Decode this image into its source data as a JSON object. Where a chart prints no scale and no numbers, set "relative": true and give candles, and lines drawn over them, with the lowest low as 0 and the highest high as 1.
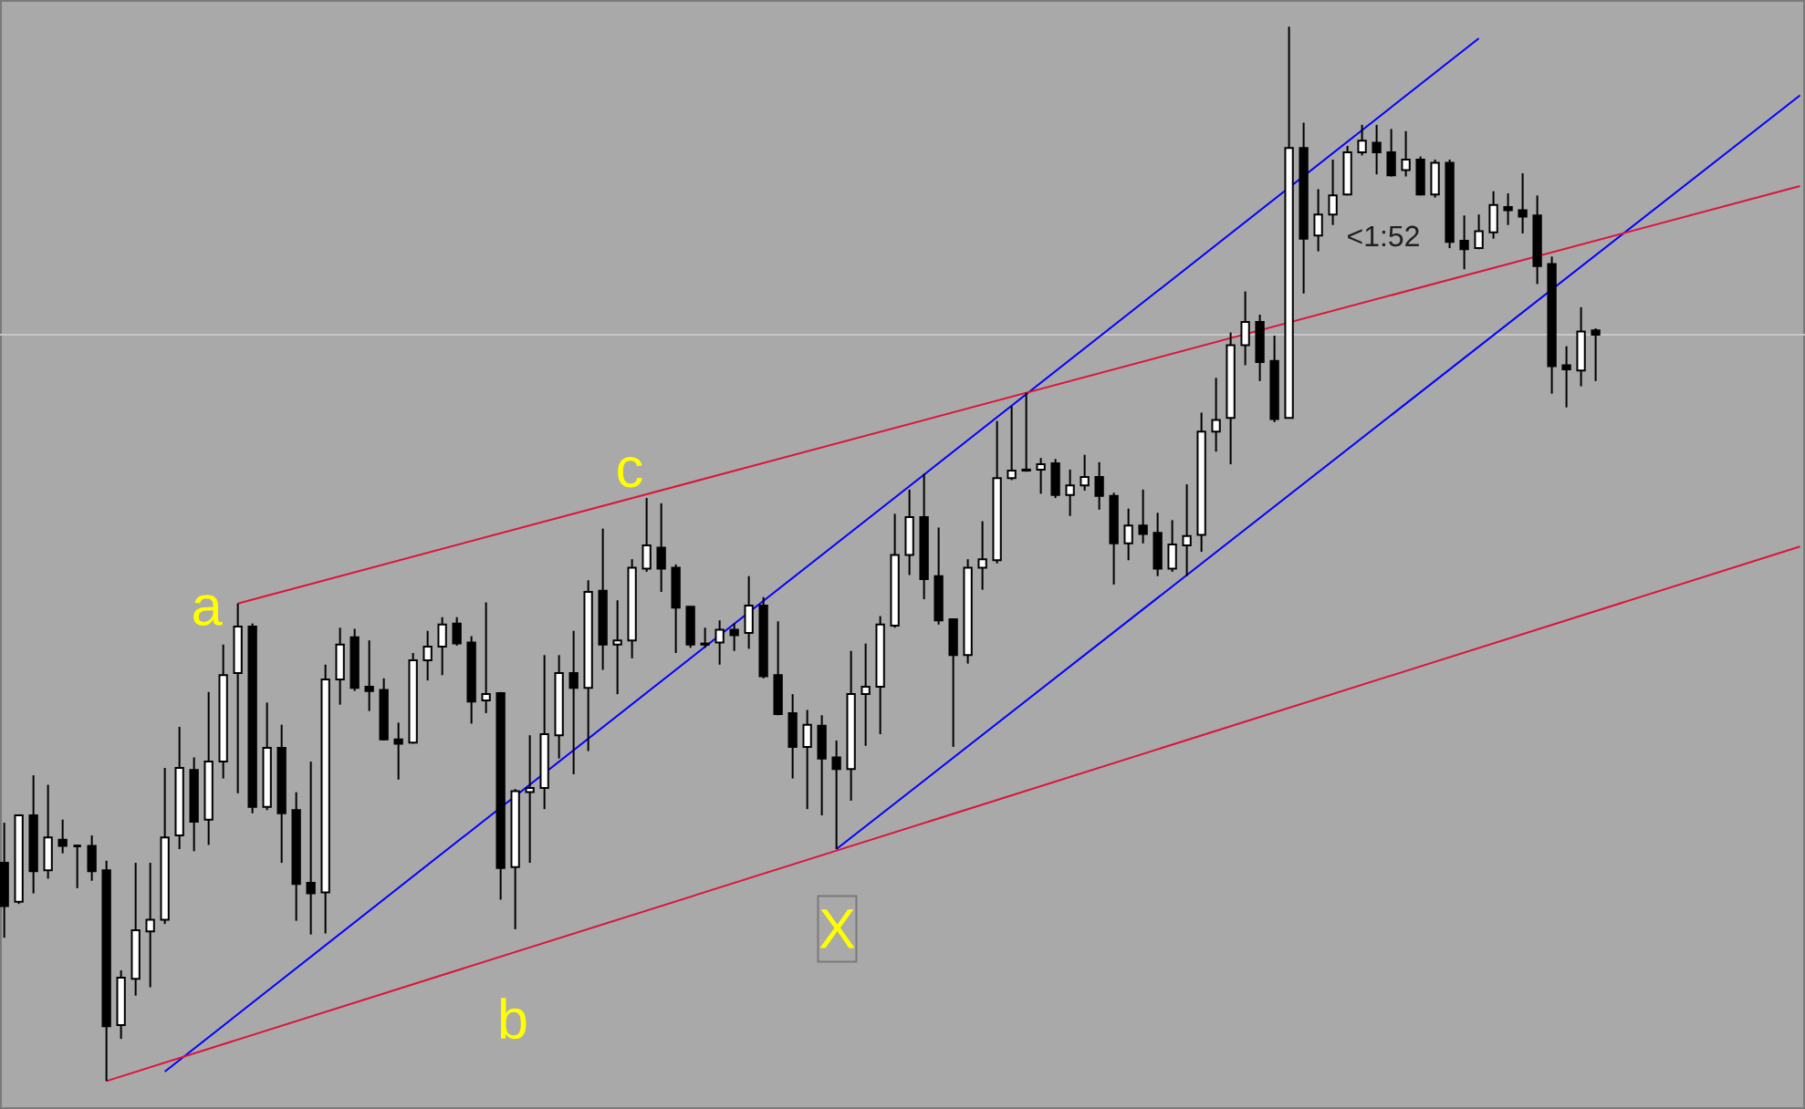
{
  "chart_data": {
    "type": "candlestick",
    "relative": true,
    "categories": [
      null,
      null,
      null,
      null,
      null,
      null,
      null,
      null,
      null,
      null,
      null,
      null,
      null,
      null,
      null,
      null,
      null,
      null,
      null,
      null,
      null,
      null,
      null,
      null,
      null,
      null,
      null,
      null,
      null,
      null,
      null,
      null,
      null,
      null,
      null,
      null,
      null,
      null,
      null,
      null,
      null,
      null,
      null,
      null,
      null,
      null,
      null,
      null,
      null,
      null,
      null,
      null,
      null,
      null,
      null,
      null,
      null,
      null,
      null,
      null,
      null,
      null,
      null,
      null,
      null,
      null,
      null,
      null,
      null,
      null,
      null,
      null,
      null,
      null,
      null,
      null,
      null,
      null,
      null,
      null,
      null,
      null,
      null,
      null,
      null,
      null,
      null,
      null,
      null,
      null,
      null,
      null,
      null,
      null,
      null,
      null,
      null,
      null,
      null,
      null,
      null,
      null,
      null,
      null,
      null,
      null,
      null,
      null,
      null,
      null,
      null,
      null,
      null,
      null,
      null,
      null,
      null,
      null,
      null,
      null,
      null,
      null,
      null,
      null
    ],
    "ohlc": [
      [
        0.207,
        0.245,
        0.136,
        0.166
      ],
      [
        0.17,
        0.253,
        0.168,
        0.252
      ],
      [
        0.252,
        0.29,
        0.178,
        0.199
      ],
      [
        0.2,
        0.281,
        0.192,
        0.231
      ],
      [
        0.229,
        0.248,
        0.216,
        0.223
      ],
      [
        0.223,
        0.224,
        0.183,
        0.223
      ],
      [
        0.223,
        0.233,
        0.19,
        0.199
      ],
      [
        0.2,
        0.209,
        0,
        0.052
      ],
      [
        0.053,
        0.105,
        0.04,
        0.098
      ],
      [
        0.097,
        0.207,
        0.081,
        0.143
      ],
      [
        0.142,
        0.207,
        0.089,
        0.153
      ],
      [
        0.153,
        0.297,
        0.149,
        0.231
      ],
      [
        0.233,
        0.336,
        0.22,
        0.297
      ],
      [
        0.295,
        0.307,
        0.218,
        0.246
      ],
      [
        0.248,
        0.369,
        0.224,
        0.303
      ],
      [
        0.303,
        0.414,
        0.287,
        0.385
      ],
      [
        0.387,
        0.453,
        0.273,
        0.431
      ],
      [
        0.431,
        0.434,
        0.254,
        0.26
      ],
      [
        0.26,
        0.359,
        0.257,
        0.316
      ],
      [
        0.316,
        0.338,
        0.207,
        0.254
      ],
      [
        0.257,
        0.274,
        0.152,
        0.187
      ],
      [
        0.188,
        0.303,
        0.139,
        0.178
      ],
      [
        0.179,
        0.395,
        0.14,
        0.381
      ],
      [
        0.381,
        0.43,
        0.357,
        0.414
      ],
      [
        0.421,
        0.429,
        0.37,
        0.373
      ],
      [
        0.374,
        0.418,
        0.351,
        0.37
      ],
      [
        0.371,
        0.382,
        0.323,
        0.324
      ],
      [
        0.324,
        0.34,
        0.286,
        0.32
      ],
      [
        0.321,
        0.406,
        0.32,
        0.399
      ],
      [
        0.399,
        0.427,
        0.38,
        0.412
      ],
      [
        0.412,
        0.44,
        0.385,
        0.433
      ],
      [
        0.434,
        0.44,
        0.413,
        0.415
      ],
      [
        0.416,
        0.422,
        0.339,
        0.36
      ],
      [
        0.361,
        0.454,
        0.349,
        0.367
      ],
      [
        0.368,
        0.369,
        0.172,
        0.202
      ],
      [
        0.203,
        0.277,
        0.144,
        0.275
      ],
      [
        0.274,
        0.328,
        0.207,
        0.278
      ],
      [
        0.278,
        0.404,
        0.258,
        0.329
      ],
      [
        0.328,
        0.404,
        0.306,
        0.387
      ],
      [
        0.387,
        0.427,
        0.291,
        0.373
      ],
      [
        0.373,
        0.475,
        0.313,
        0.464
      ],
      [
        0.465,
        0.524,
        0.39,
        0.414
      ],
      [
        0.414,
        0.456,
        0.367,
        0.418
      ],
      [
        0.418,
        0.495,
        0.401,
        0.487
      ],
      [
        0.486,
        0.553,
        0.483,
        0.508
      ],
      [
        0.506,
        0.548,
        0.464,
        0.486
      ],
      [
        0.487,
        0.49,
        0.406,
        0.449
      ],
      [
        0.45,
        0.45,
        0.411,
        0.414
      ],
      [
        0.415,
        0.43,
        0.411,
        0.414
      ],
      [
        0.416,
        0.437,
        0.395,
        0.428
      ],
      [
        0.428,
        0.434,
        0.408,
        0.423
      ],
      [
        0.425,
        0.479,
        0.41,
        0.451
      ],
      [
        0.451,
        0.459,
        0.382,
        0.384
      ],
      [
        0.385,
        0.436,
        0.347,
        0.348
      ],
      [
        0.349,
        0.367,
        0.287,
        0.317
      ],
      [
        0.317,
        0.352,
        0.258,
        0.338
      ],
      [
        0.337,
        0.347,
        0.252,
        0.306
      ],
      [
        0.307,
        0.323,
        0.22,
        0.296
      ],
      [
        0.296,
        0.408,
        0.266,
        0.367
      ],
      [
        0.367,
        0.415,
        0.318,
        0.374
      ],
      [
        0.374,
        0.441,
        0.329,
        0.433
      ],
      [
        0.432,
        0.538,
        0.43,
        0.499
      ],
      [
        0.499,
        0.561,
        0.48,
        0.535
      ],
      [
        0.535,
        0.576,
        0.457,
        0.476
      ],
      [
        0.479,
        0.525,
        0.433,
        0.437
      ],
      [
        0.438,
        0.438,
        0.317,
        0.404
      ],
      [
        0.404,
        0.495,
        0.396,
        0.487
      ],
      [
        0.487,
        0.531,
        0.466,
        0.495
      ],
      [
        0.494,
        0.626,
        0.491,
        0.572
      ],
      [
        0.572,
        0.64,
        0.57,
        0.579
      ],
      [
        0.58,
        0.653,
        0.578,
        0.579
      ],
      [
        0.58,
        0.591,
        0.557,
        0.585
      ],
      [
        0.586,
        0.59,
        0.553,
        0.556
      ],
      [
        0.556,
        0.58,
        0.536,
        0.565
      ],
      [
        0.565,
        0.594,
        0.56,
        0.573
      ],
      [
        0.573,
        0.587,
        0.542,
        0.555
      ],
      [
        0.555,
        0.558,
        0.471,
        0.51
      ],
      [
        0.51,
        0.543,
        0.494,
        0.527
      ],
      [
        0.527,
        0.561,
        0.51,
        0.519
      ],
      [
        0.52,
        0.539,
        0.479,
        0.486
      ],
      [
        0.486,
        0.532,
        0.483,
        0.509
      ],
      [
        0.508,
        0.566,
        0.479,
        0.517
      ],
      [
        0.518,
        0.634,
        0.502,
        0.616
      ],
      [
        0.616,
        0.667,
        0.597,
        0.627
      ],
      [
        0.629,
        0.71,
        0.585,
        0.698
      ],
      [
        0.698,
        0.749,
        0.679,
        0.72
      ],
      [
        0.72,
        0.727,
        0.664,
        0.682
      ],
      [
        0.683,
        0.707,
        0.625,
        0.628
      ],
      [
        0.629,
        1,
        0.629,
        0.885
      ],
      [
        0.885,
        0.909,
        0.747,
        0.799
      ],
      [
        0.802,
        0.846,
        0.787,
        0.822
      ],
      [
        0.822,
        0.874,
        0.812,
        0.84
      ],
      [
        0.841,
        0.887,
        0.84,
        0.881
      ],
      [
        0.881,
        0.907,
        0.878,
        0.892
      ],
      [
        0.89,
        0.907,
        0.86,
        0.881
      ],
      [
        0.881,
        0.903,
        0.858,
        0.859
      ],
      [
        0.864,
        0.901,
        0.858,
        0.874
      ],
      [
        0.874,
        0.877,
        0.84,
        0.841
      ],
      [
        0.841,
        0.874,
        0.838,
        0.871
      ],
      [
        0.871,
        0.874,
        0.79,
        0.796
      ],
      [
        0.797,
        0.821,
        0.77,
        0.789
      ],
      [
        0.79,
        0.822,
        0.789,
        0.806
      ],
      [
        0.805,
        0.844,
        0.799,
        0.831
      ],
      [
        0.829,
        0.842,
        0.812,
        0.826
      ],
      [
        0.826,
        0.861,
        0.804,
        0.82
      ],
      [
        0.821,
        0.84,
        0.756,
        0.773
      ],
      [
        0.775,
        0.782,
        0.652,
        0.678
      ],
      [
        0.679,
        0.697,
        0.639,
        0.675
      ],
      [
        0.674,
        0.734,
        0.659,
        0.711
      ],
      [
        0.712,
        0.714,
        0.664,
        0.708
      ],
      null,
      null,
      null,
      null,
      null,
      null,
      null,
      null,
      null,
      null,
      null,
      null,
      null,
      null
    ],
    "colors": [
      "#000000",
      "#ffffff",
      "#000000",
      "#ffffff",
      "#000000",
      "#000000",
      "#000000",
      "#000000",
      "#ffffff",
      "#ffffff",
      "#ffffff",
      "#ffffff",
      "#ffffff",
      "#000000",
      "#ffffff",
      "#ffffff",
      "#ffffff",
      "#000000",
      "#ffffff",
      "#000000",
      "#000000",
      "#000000",
      "#ffffff",
      "#ffffff",
      "#000000",
      "#000000",
      "#000000",
      "#000000",
      "#ffffff",
      "#ffffff",
      "#ffffff",
      "#000000",
      "#000000",
      "#ffffff",
      "#000000",
      "#ffffff",
      "#ffffff",
      "#ffffff",
      "#ffffff",
      "#000000",
      "#ffffff",
      "#000000",
      "#ffffff",
      "#ffffff",
      "#ffffff",
      "#000000",
      "#000000",
      "#000000",
      "#000000",
      "#ffffff",
      "#000000",
      "#ffffff",
      "#000000",
      "#000000",
      "#000000",
      "#ffffff",
      "#000000",
      "#000000",
      "#ffffff",
      "#ffffff",
      "#ffffff",
      "#ffffff",
      "#ffffff",
      "#000000",
      "#000000",
      "#000000",
      "#ffffff",
      "#ffffff",
      "#ffffff",
      "#ffffff",
      "#000000",
      "#ffffff",
      "#000000",
      "#ffffff",
      "#ffffff",
      "#000000",
      "#000000",
      "#ffffff",
      "#000000",
      "#000000",
      "#ffffff",
      "#ffffff",
      "#ffffff",
      "#ffffff",
      "#ffffff",
      "#ffffff",
      "#000000",
      "#000000",
      "#ffffff",
      "#000000",
      "#ffffff",
      "#ffffff",
      "#ffffff",
      "#ffffff",
      "#000000",
      "#000000",
      "#ffffff",
      "#000000",
      "#ffffff",
      "#000000",
      "#000000",
      "#ffffff",
      "#ffffff",
      "#000000",
      "#000000",
      "#000000",
      "#000000",
      "#000000",
      "#ffffff",
      "#000000",
      null,
      null,
      null,
      null,
      null,
      null,
      null,
      null,
      null,
      null,
      null,
      null,
      null,
      null
    ],
    "series": [
      {
        "type": "line",
        "color": "#0000ff",
        "values": [
          null,
          null,
          null,
          null,
          null,
          null,
          null,
          null,
          null,
          null,
          null,
          0.009,
          null,
          null,
          null,
          null,
          null,
          null,
          null,
          null,
          null,
          null,
          null,
          null,
          null,
          null,
          null,
          null,
          null,
          null,
          null,
          null,
          null,
          null,
          null,
          null,
          null,
          null,
          null,
          null,
          null,
          null,
          null,
          null,
          null,
          null,
          null,
          null,
          null,
          null,
          null,
          null,
          null,
          null,
          null,
          null,
          null,
          null,
          null,
          null,
          null,
          null,
          null,
          null,
          null,
          null,
          null,
          null,
          null,
          null,
          null,
          null,
          null,
          null,
          null,
          null,
          null,
          null,
          null,
          null,
          null,
          null,
          null,
          null,
          null,
          null,
          null,
          null,
          null,
          null,
          null,
          null,
          null,
          null,
          null,
          null,
          null,
          null,
          null,
          null,
          null,
          0.989,
          null,
          null,
          null,
          null,
          null,
          null,
          null,
          null,
          null,
          null,
          null,
          null,
          null,
          null,
          null,
          null,
          null,
          null,
          null,
          null,
          null,
          null
        ]
      },
      {
        "type": "line",
        "color": "#0000ff",
        "values": [
          null,
          null,
          null,
          null,
          null,
          null,
          null,
          null,
          null,
          null,
          null,
          null,
          null,
          null,
          null,
          null,
          null,
          null,
          null,
          null,
          null,
          null,
          null,
          null,
          null,
          null,
          null,
          null,
          null,
          null,
          null,
          null,
          null,
          null,
          null,
          null,
          null,
          null,
          null,
          null,
          null,
          null,
          null,
          null,
          null,
          null,
          null,
          null,
          null,
          null,
          null,
          null,
          null,
          null,
          null,
          null,
          null,
          0.22,
          null,
          null,
          null,
          null,
          null,
          null,
          null,
          null,
          null,
          null,
          null,
          null,
          null,
          null,
          null,
          null,
          null,
          null,
          null,
          null,
          null,
          null,
          null,
          null,
          null,
          null,
          null,
          null,
          null,
          null,
          null,
          null,
          null,
          null,
          null,
          null,
          null,
          null,
          null,
          null,
          null,
          null,
          null,
          null,
          null,
          null,
          null,
          null,
          null,
          null,
          null,
          null,
          null,
          null,
          null,
          null,
          null,
          null,
          null,
          null,
          null,
          null,
          null,
          null,
          null,
          0.935
        ]
      },
      {
        "type": "line",
        "color": "#dc143c",
        "values": [
          null,
          null,
          null,
          null,
          null,
          null,
          null,
          null,
          null,
          null,
          null,
          null,
          null,
          null,
          null,
          null,
          0.453,
          null,
          null,
          null,
          null,
          null,
          null,
          null,
          null,
          null,
          null,
          null,
          null,
          null,
          null,
          null,
          null,
          null,
          null,
          null,
          null,
          null,
          null,
          null,
          null,
          null,
          null,
          null,
          null,
          null,
          null,
          null,
          null,
          null,
          null,
          null,
          null,
          null,
          null,
          null,
          null,
          null,
          null,
          null,
          null,
          null,
          null,
          null,
          null,
          null,
          null,
          null,
          null,
          null,
          null,
          null,
          null,
          null,
          null,
          null,
          null,
          null,
          null,
          null,
          null,
          null,
          null,
          null,
          null,
          null,
          null,
          null,
          null,
          null,
          null,
          null,
          null,
          null,
          null,
          null,
          null,
          null,
          null,
          null,
          null,
          null,
          null,
          null,
          null,
          null,
          null,
          null,
          null,
          null,
          null,
          null,
          null,
          null,
          null,
          null,
          null,
          null,
          null,
          null,
          null,
          null,
          null,
          0.849
        ]
      },
      {
        "type": "line",
        "color": "#dc143c",
        "values": [
          null,
          null,
          null,
          null,
          null,
          null,
          null,
          0,
          null,
          null,
          null,
          null,
          null,
          null,
          null,
          null,
          null,
          null,
          null,
          null,
          null,
          null,
          null,
          null,
          null,
          null,
          null,
          null,
          null,
          null,
          null,
          null,
          null,
          null,
          null,
          null,
          null,
          null,
          null,
          null,
          null,
          null,
          null,
          null,
          null,
          null,
          null,
          null,
          null,
          null,
          null,
          null,
          null,
          null,
          null,
          null,
          null,
          null,
          null,
          null,
          null,
          null,
          null,
          null,
          null,
          null,
          null,
          null,
          null,
          null,
          null,
          null,
          null,
          null,
          null,
          null,
          null,
          null,
          null,
          null,
          null,
          null,
          null,
          null,
          null,
          null,
          null,
          null,
          null,
          null,
          null,
          null,
          null,
          null,
          null,
          null,
          null,
          null,
          null,
          null,
          null,
          null,
          null,
          null,
          null,
          null,
          null,
          null,
          null,
          null,
          null,
          null,
          null,
          null,
          null,
          null,
          null,
          null,
          null,
          null,
          null,
          null,
          null,
          0.507
        ]
      }
    ],
    "ref_lines": [
      {
        "axis": "y",
        "value": 0.708,
        "color": "#c8c8c8"
      }
    ],
    "annotations": [
      "a",
      "b",
      "c",
      "X",
      "<1:52"
    ]
  }
}
